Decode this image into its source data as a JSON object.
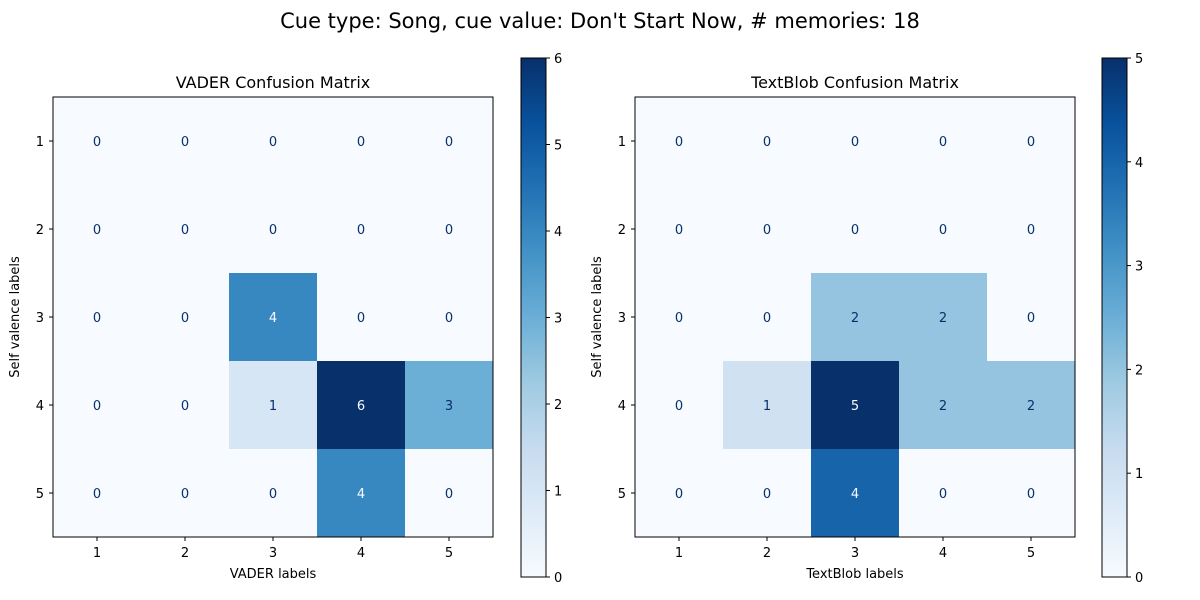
{
  "suptitle": "Cue type: Song, cue value: Don't Start Now, # memories: 18",
  "chart_data": [
    {
      "type": "heatmap",
      "title": "VADER Confusion Matrix",
      "xlabel": "VADER labels",
      "ylabel": "Self valence labels",
      "x_categories": [
        "1",
        "2",
        "3",
        "4",
        "5"
      ],
      "y_categories": [
        "1",
        "2",
        "3",
        "4",
        "5"
      ],
      "values": [
        [
          0,
          0,
          0,
          0,
          0
        ],
        [
          0,
          0,
          0,
          0,
          0
        ],
        [
          0,
          0,
          4,
          0,
          0
        ],
        [
          0,
          0,
          1,
          6,
          3
        ],
        [
          0,
          0,
          0,
          4,
          0
        ]
      ],
      "colormap": "Blues",
      "vmin": 0,
      "vmax": 6,
      "colorbar_ticks": [
        "0",
        "1",
        "2",
        "3",
        "4",
        "5",
        "6"
      ]
    },
    {
      "type": "heatmap",
      "title": "TextBlob Confusion Matrix",
      "xlabel": "TextBlob labels",
      "ylabel": "Self valence labels",
      "x_categories": [
        "1",
        "2",
        "3",
        "4",
        "5"
      ],
      "y_categories": [
        "1",
        "2",
        "3",
        "4",
        "5"
      ],
      "values": [
        [
          0,
          0,
          0,
          0,
          0
        ],
        [
          0,
          0,
          0,
          0,
          0
        ],
        [
          0,
          0,
          2,
          2,
          0
        ],
        [
          0,
          1,
          5,
          2,
          2
        ],
        [
          0,
          0,
          4,
          0,
          0
        ]
      ],
      "colormap": "Blues",
      "vmin": 0,
      "vmax": 5,
      "colorbar_ticks": [
        "0",
        "1",
        "2",
        "3",
        "4",
        "5"
      ]
    }
  ]
}
